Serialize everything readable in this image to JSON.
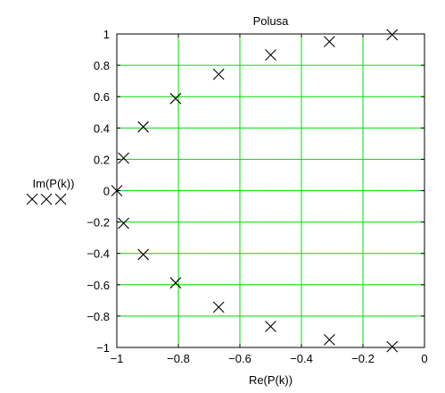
{
  "chart_data": {
    "type": "scatter",
    "title": "Polusa",
    "xlabel": "Re(P(k))",
    "ylabel": "Im(P(k))",
    "legend_marker_text": "XXX",
    "xlim": [
      -1,
      0
    ],
    "ylim": [
      -1,
      1
    ],
    "xticks": [
      -1,
      -0.8,
      -0.6,
      -0.4,
      -0.2,
      0
    ],
    "xtick_labels": [
      "−1",
      "−0.8",
      "−0.6",
      "−0.4",
      "−0.2",
      "0"
    ],
    "yticks": [
      1,
      0.8,
      0.6,
      0.4,
      0.2,
      0,
      -0.2,
      -0.4,
      -0.6,
      -0.8,
      -1
    ],
    "ytick_labels": [
      "1",
      "0.8",
      "0.6",
      "0.4",
      "0.2",
      "0",
      "−0.2",
      "−0.4",
      "−0.6",
      "−0.8",
      "−1"
    ],
    "grid": true,
    "colors": {
      "grid": "#00dd00",
      "axes": "#000000",
      "marker": "#000000",
      "background": "#ffffff"
    },
    "marker": "x",
    "series": [
      {
        "points": [
          {
            "x": -0.105,
            "y": 0.995
          },
          {
            "x": -0.309,
            "y": 0.951
          },
          {
            "x": -0.5,
            "y": 0.866
          },
          {
            "x": -0.669,
            "y": 0.743
          },
          {
            "x": -0.809,
            "y": 0.588
          },
          {
            "x": -0.914,
            "y": 0.407
          },
          {
            "x": -0.978,
            "y": 0.208
          },
          {
            "x": -1.0,
            "y": 0.0
          },
          {
            "x": -0.978,
            "y": -0.208
          },
          {
            "x": -0.914,
            "y": -0.407
          },
          {
            "x": -0.809,
            "y": -0.588
          },
          {
            "x": -0.669,
            "y": -0.743
          },
          {
            "x": -0.5,
            "y": -0.866
          },
          {
            "x": -0.309,
            "y": -0.951
          },
          {
            "x": -0.105,
            "y": -0.995
          }
        ]
      }
    ]
  }
}
